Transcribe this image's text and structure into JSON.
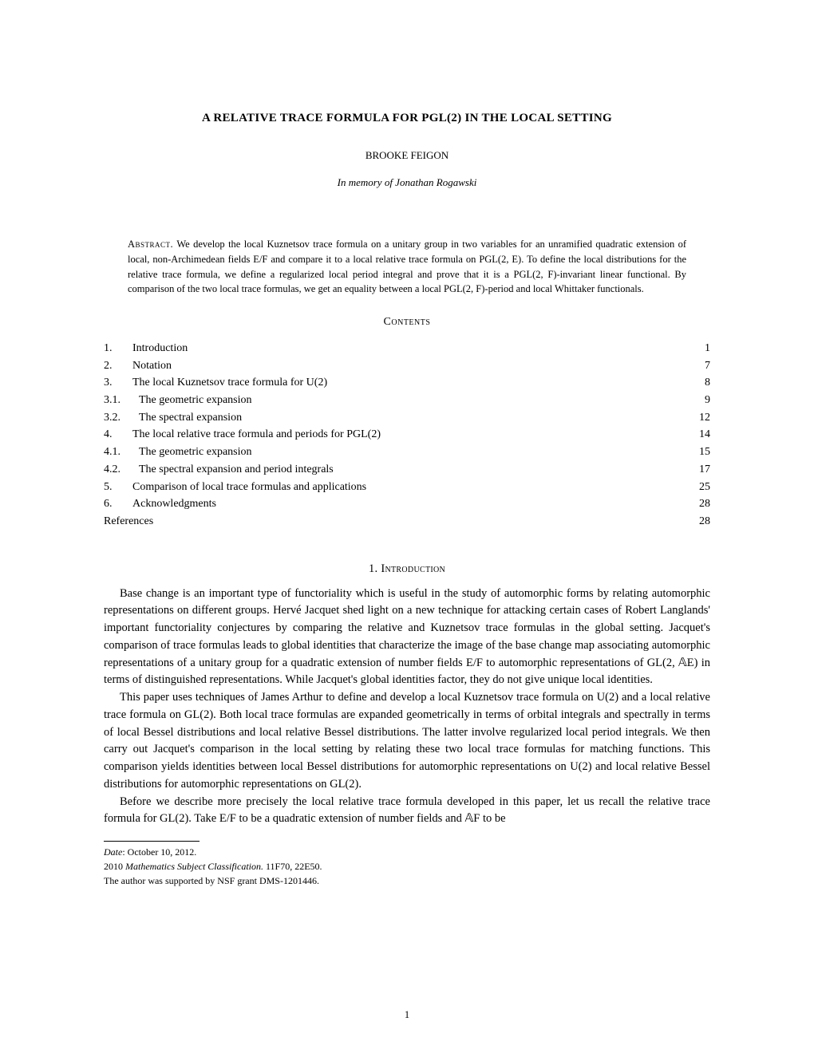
{
  "title": "A RELATIVE TRACE FORMULA FOR PGL(2) IN THE LOCAL SETTING",
  "author": "BROOKE FEIGON",
  "dedication": "In memory of Jonathan Rogawski",
  "abstract_label": "Abstract.",
  "abstract_text": "We develop the local Kuznetsov trace formula on a unitary group in two variables for an unramified quadratic extension of local, non-Archimedean fields E/F and compare it to a local relative trace formula on PGL(2, E). To define the local distributions for the relative trace formula, we define a regularized local period integral and prove that it is a PGL(2, F)-invariant linear functional. By comparison of the two local trace formulas, we get an equality between a local PGL(2, F)-period and local Whittaker functionals.",
  "contents_title": "Contents",
  "toc": [
    {
      "num": "1.",
      "title": "Introduction",
      "page": "1"
    },
    {
      "num": "2.",
      "title": "Notation",
      "page": "7"
    },
    {
      "num": "3.",
      "title": "The local Kuznetsov trace formula for U(2)",
      "page": "8"
    },
    {
      "num": "3.1.",
      "title": "The geometric expansion",
      "page": "9"
    },
    {
      "num": "3.2.",
      "title": "The spectral expansion",
      "page": "12"
    },
    {
      "num": "4.",
      "title": "The local relative trace formula and periods for PGL(2)",
      "page": "14"
    },
    {
      "num": "4.1.",
      "title": "The geometric expansion",
      "page": "15"
    },
    {
      "num": "4.2.",
      "title": "The spectral expansion and period integrals",
      "page": "17"
    },
    {
      "num": "5.",
      "title": "Comparison of local trace formulas and applications",
      "page": "25"
    },
    {
      "num": "6.",
      "title": "Acknowledgments",
      "page": "28"
    },
    {
      "num": "",
      "title": "References",
      "page": "28"
    }
  ],
  "section1": {
    "number": "1.",
    "title": "Introduction",
    "p1": "Base change is an important type of functoriality which is useful in the study of automorphic forms by relating automorphic representations on different groups. Hervé Jacquet shed light on a new technique for attacking certain cases of Robert Langlands' important functoriality conjectures by comparing the relative and Kuznetsov trace formulas in the global setting. Jacquet's comparison of trace formulas leads to global identities that characterize the image of the base change map associating automorphic representations of a unitary group for a quadratic extension of number fields E/F to automorphic representations of GL(2, 𝔸E) in terms of distinguished representations. While Jacquet's global identities factor, they do not give unique local identities.",
    "p2": "This paper uses techniques of James Arthur to define and develop a local Kuznetsov trace formula on U(2) and a local relative trace formula on GL(2). Both local trace formulas are expanded geometrically in terms of orbital integrals and spectrally in terms of local Bessel distributions and local relative Bessel distributions. The latter involve regularized local period integrals. We then carry out Jacquet's comparison in the local setting by relating these two local trace formulas for matching functions. This comparison yields identities between local Bessel distributions for automorphic representations on U(2) and local relative Bessel distributions for automorphic representations on GL(2).",
    "p3": "Before we describe more precisely the local relative trace formula developed in this paper, let us recall the relative trace formula for GL(2). Take E/F to be a quadratic extension of number fields and 𝔸F to be"
  },
  "footnotes": {
    "date_label": "Date",
    "date_value": ": October 10, 2012.",
    "msc_label": "Mathematics Subject Classification.",
    "msc_year": "2010 ",
    "msc_value": " 11F70, 22E50.",
    "funding": "The author was supported by NSF grant DMS-1201446."
  },
  "page_number": "1"
}
